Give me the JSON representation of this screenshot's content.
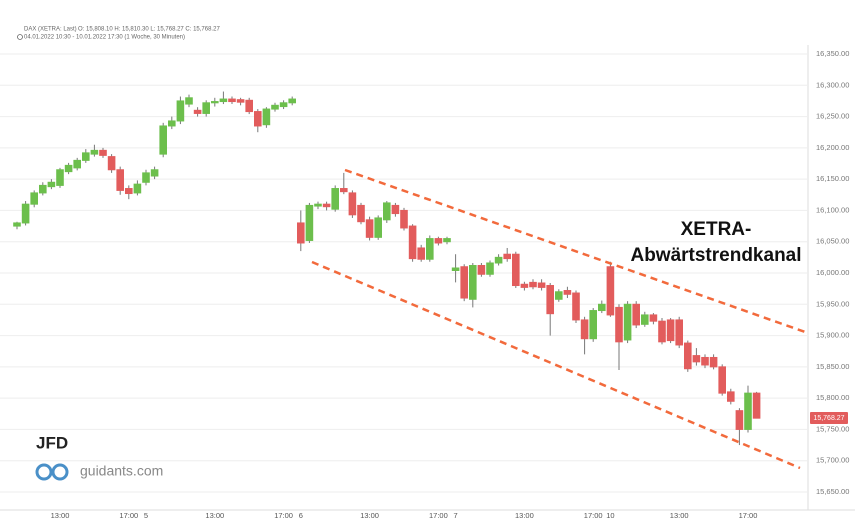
{
  "chart_data": {
    "type": "candlestick",
    "title": "DAX (XETRA: Last)",
    "ohlc_text": "O: 15,808.10  H: 15,810.30  L: 15,768.27  C: 15,768.27",
    "subtitle": "04.01.2022 10:30 - 10.01.2022 17:30  (1 Woche, 30 Minuten)",
    "annotations": [
      "XETRA-",
      "Abwärtstrendkanal"
    ],
    "logos": [
      "JFD",
      "guidants.com"
    ],
    "price_tag": {
      "value": 15768.27,
      "label": "15,768.27"
    },
    "up_color": "#6cbf4c",
    "down_color": "#e25c5c",
    "grid": true,
    "ylim": [
      15650,
      16350
    ],
    "yticks": [
      {
        "value": 15650,
        "label": "15,650.00"
      },
      {
        "value": 15700,
        "label": "15,700.00"
      },
      {
        "value": 15750,
        "label": "15,750.00"
      },
      {
        "value": 15800,
        "label": "15,800.00"
      },
      {
        "value": 15850,
        "label": "15,850.00"
      },
      {
        "value": 15900,
        "label": "15,900.00"
      },
      {
        "value": 15950,
        "label": "15,950.00"
      },
      {
        "value": 16000,
        "label": "16,000.00"
      },
      {
        "value": 16050,
        "label": "16,050.00"
      },
      {
        "value": 16100,
        "label": "16,100.00"
      },
      {
        "value": 16150,
        "label": "16,150.00"
      },
      {
        "value": 16200,
        "label": "16,200.00"
      },
      {
        "value": 16250,
        "label": "16,250.00"
      },
      {
        "value": 16300,
        "label": "16,300.00"
      },
      {
        "value": 16350,
        "label": "16,350.00"
      }
    ],
    "categories": [
      null,
      null,
      null,
      null,
      null,
      "13:00",
      null,
      null,
      null,
      null,
      null,
      null,
      null,
      "17:00",
      null,
      "5",
      null,
      null,
      null,
      null,
      null,
      null,
      null,
      "13:00",
      null,
      null,
      null,
      null,
      null,
      null,
      null,
      "17:00",
      null,
      "6",
      null,
      null,
      null,
      null,
      null,
      null,
      null,
      "13:00",
      null,
      null,
      null,
      null,
      null,
      null,
      null,
      "17:00",
      null,
      "7",
      null,
      null,
      null,
      null,
      null,
      null,
      null,
      "13:00",
      null,
      null,
      null,
      null,
      null,
      null,
      null,
      "17:00",
      null,
      "10",
      null,
      null,
      null,
      null,
      null,
      null,
      null,
      "13:00",
      null,
      null,
      null,
      null,
      null,
      null,
      null,
      "17:00",
      null
    ],
    "open": [
      16075,
      16080,
      16110,
      16128,
      16138,
      16140,
      16162,
      16168,
      16180,
      16190,
      16196,
      16186,
      16165,
      16135,
      16128,
      16145,
      16155,
      16190,
      16235,
      16243,
      16270,
      16260,
      16255,
      16272,
      16274,
      16278,
      16277,
      16276,
      16258,
      16237,
      16262,
      16266,
      16272,
      16080,
      16052,
      16107,
      16110,
      16102,
      16135,
      16128,
      16108,
      16085,
      16057,
      16085,
      16108,
      16100,
      16075,
      16040,
      16022,
      16055,
      16050,
      16004,
      16010,
      15958,
      16012,
      15998,
      16016,
      16030,
      16030,
      15982,
      15985,
      15984,
      15980,
      15958,
      15972,
      15968,
      15925,
      15895,
      15940,
      16010,
      15945,
      15893,
      15950,
      15918,
      15933,
      15923,
      15925,
      15925,
      15888,
      15868,
      15865,
      15865,
      15850,
      15810,
      15780,
      15750,
      15808
    ],
    "high": [
      16082,
      16115,
      16132,
      16145,
      16150,
      16168,
      16176,
      16184,
      16198,
      16205,
      16200,
      16190,
      16170,
      16140,
      16148,
      16165,
      16170,
      16240,
      16250,
      16282,
      16285,
      16265,
      16276,
      16280,
      16290,
      16282,
      16280,
      16280,
      16262,
      16265,
      16272,
      16276,
      16282,
      16100,
      16112,
      16114,
      16114,
      16140,
      16160,
      16132,
      16112,
      16090,
      16092,
      16115,
      16112,
      16104,
      16078,
      16045,
      16060,
      16058,
      16058,
      16030,
      16014,
      16016,
      16016,
      16020,
      16030,
      16040,
      16034,
      15986,
      15990,
      15990,
      15984,
      15974,
      15978,
      15972,
      15930,
      15944,
      15956,
      16018,
      15950,
      15955,
      15955,
      15938,
      15936,
      15928,
      15928,
      15930,
      15892,
      15880,
      15870,
      15870,
      15854,
      15815,
      15784,
      15820,
      15810
    ],
    "low": [
      16070,
      16076,
      16105,
      16124,
      16134,
      16136,
      16158,
      16164,
      16176,
      16186,
      16184,
      16160,
      16125,
      16118,
      16124,
      16140,
      16150,
      16185,
      16230,
      16238,
      16265,
      16250,
      16250,
      16266,
      16270,
      16270,
      16268,
      16254,
      16225,
      16232,
      16258,
      16262,
      16268,
      16035,
      16048,
      16102,
      16100,
      16098,
      16126,
      16088,
      16078,
      16052,
      16053,
      16080,
      16090,
      16068,
      16018,
      16018,
      16018,
      16044,
      16046,
      15985,
      15955,
      15945,
      15994,
      15994,
      16012,
      16018,
      15976,
      15972,
      15974,
      15972,
      15900,
      15954,
      15960,
      15920,
      15870,
      15890,
      15936,
      15930,
      15845,
      15888,
      15912,
      15914,
      15918,
      15886,
      15888,
      15880,
      15842,
      15852,
      15848,
      15846,
      15804,
      15790,
      15725,
      15745,
      15768
    ],
    "close": [
      16080,
      16110,
      16128,
      16140,
      16145,
      16165,
      16172,
      16180,
      16192,
      16196,
      16188,
      16165,
      16132,
      16127,
      16142,
      16160,
      16165,
      16235,
      16243,
      16275,
      16280,
      16255,
      16272,
      16274,
      16278,
      16274,
      16273,
      16258,
      16235,
      16262,
      16268,
      16272,
      16278,
      16048,
      16108,
      16110,
      16106,
      16135,
      16130,
      16093,
      16082,
      16057,
      16088,
      16112,
      16095,
      16072,
      16023,
      16022,
      16055,
      16048,
      16055,
      16008,
      15960,
      16012,
      15998,
      16016,
      16025,
      16023,
      15980,
      15977,
      15978,
      15977,
      15935,
      15970,
      15966,
      15925,
      15895,
      15940,
      15950,
      15933,
      15890,
      15950,
      15917,
      15933,
      15923,
      15890,
      15892,
      15885,
      15847,
      15858,
      15853,
      15850,
      15808,
      15795,
      15750,
      15808,
      15768
    ]
  }
}
